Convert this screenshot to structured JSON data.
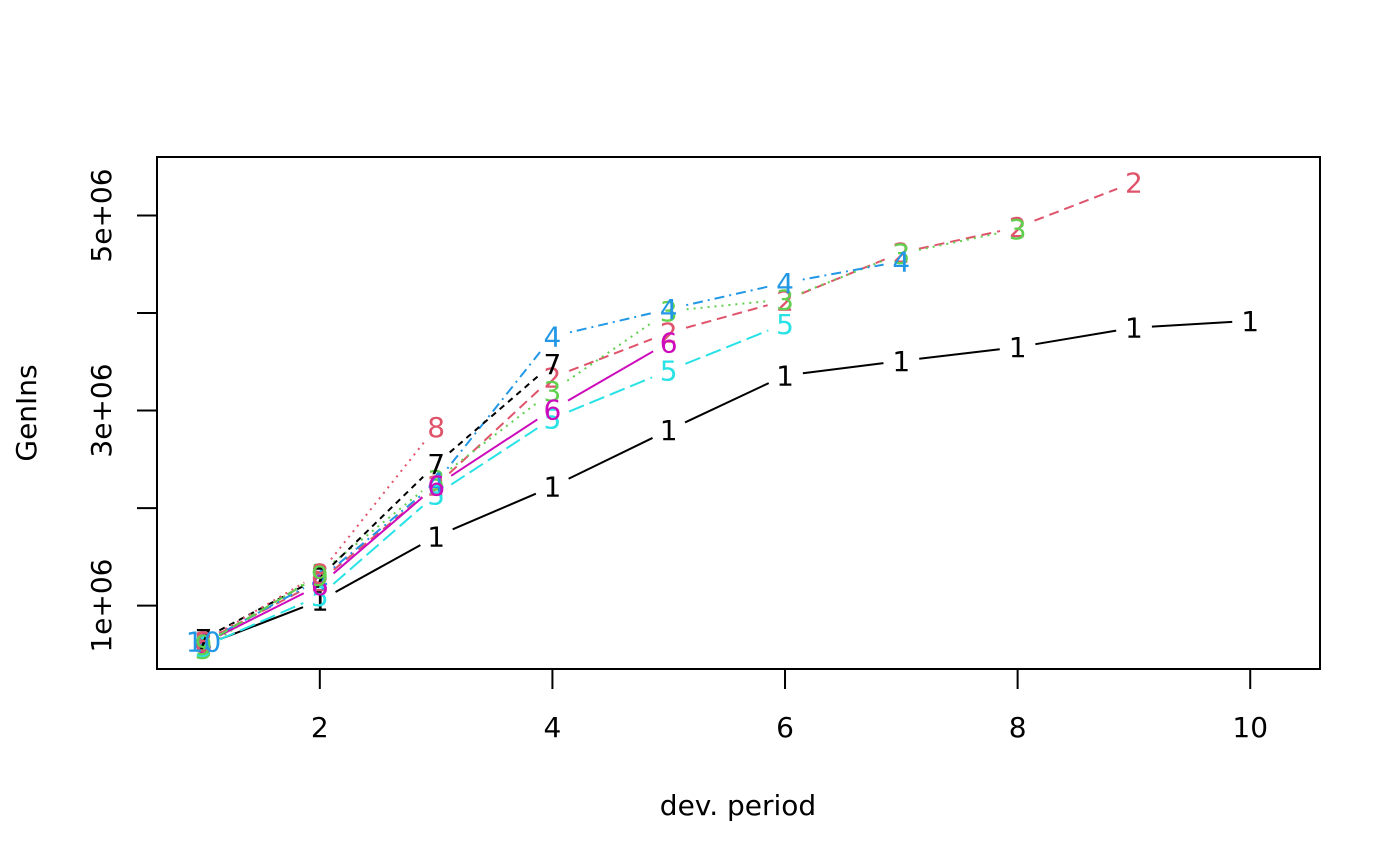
{
  "chart_data": {
    "type": "line",
    "xlabel": "dev. period",
    "ylabel": "GenIns",
    "xlim": [
      0.6,
      10.6
    ],
    "ylim": [
      350000,
      5600000
    ],
    "xticks": [
      2,
      4,
      6,
      8,
      10
    ],
    "xtick_labels": [
      "2",
      "4",
      "6",
      "8",
      "10"
    ],
    "yticks": [
      1000000,
      2000000,
      3000000,
      4000000,
      5000000
    ],
    "ytick_labels": [
      "1e+06",
      "",
      "3e+06",
      "",
      "5e+06"
    ],
    "grid": false,
    "legend": "none",
    "series": [
      {
        "name": "1",
        "color": "#000000",
        "dash": "",
        "x": [
          1,
          2,
          3,
          4,
          5,
          6,
          7,
          8,
          9,
          10
        ],
        "y": [
          590000,
          1050000,
          1710000,
          2220000,
          2800000,
          3360000,
          3510000,
          3650000,
          3850000,
          3920000
        ]
      },
      {
        "name": "2",
        "color": "#DF536B",
        "dash": "10,6",
        "x": [
          1,
          2,
          3,
          4,
          5,
          6,
          7,
          8,
          9
        ],
        "y": [
          630000,
          1250000,
          2230000,
          3340000,
          3800000,
          4130000,
          4620000,
          4880000,
          5340000
        ]
      },
      {
        "name": "3",
        "color": "#61D04F",
        "dash": "2,5",
        "x": [
          1,
          2,
          3,
          4,
          5,
          6,
          7,
          8
        ],
        "y": [
          560000,
          1330000,
          2290000,
          3200000,
          4020000,
          4140000,
          4610000,
          4860000
        ]
      },
      {
        "name": "4",
        "color": "#2297E6",
        "dash": "2,5,10,5",
        "x": [
          1,
          2,
          3,
          4,
          5,
          6,
          7
        ],
        "y": [
          620000,
          1270000,
          2260000,
          3760000,
          4040000,
          4310000,
          4530000
        ]
      },
      {
        "name": "5",
        "color": "#28E2E5",
        "dash": "16,6",
        "x": [
          1,
          2,
          3,
          4,
          5,
          6
        ],
        "y": [
          580000,
          1100000,
          2140000,
          2920000,
          3410000,
          3890000
        ]
      },
      {
        "name": "6",
        "color": "#CD0BBC",
        "dash": "",
        "x": [
          1,
          2,
          3,
          4,
          5
        ],
        "y": [
          610000,
          1210000,
          2230000,
          3010000,
          3700000
        ]
      },
      {
        "name": "7",
        "color": "#000000",
        "dash": "6,5",
        "x": [
          1,
          2,
          3,
          4
        ],
        "y": [
          660000,
          1290000,
          2450000,
          3480000
        ]
      },
      {
        "name": "8",
        "color": "#DF536B",
        "dash": "2,5",
        "x": [
          1,
          2,
          3
        ],
        "y": [
          630000,
          1330000,
          2830000
        ]
      },
      {
        "name": "9",
        "color": "#61D04F",
        "dash": "10,6",
        "x": [
          1,
          2
        ],
        "y": [
          600000,
          1310000
        ]
      },
      {
        "name": "10",
        "color": "#2297E6",
        "dash": "2,5,10,5",
        "x": [
          1
        ],
        "y": [
          630000
        ]
      }
    ]
  }
}
